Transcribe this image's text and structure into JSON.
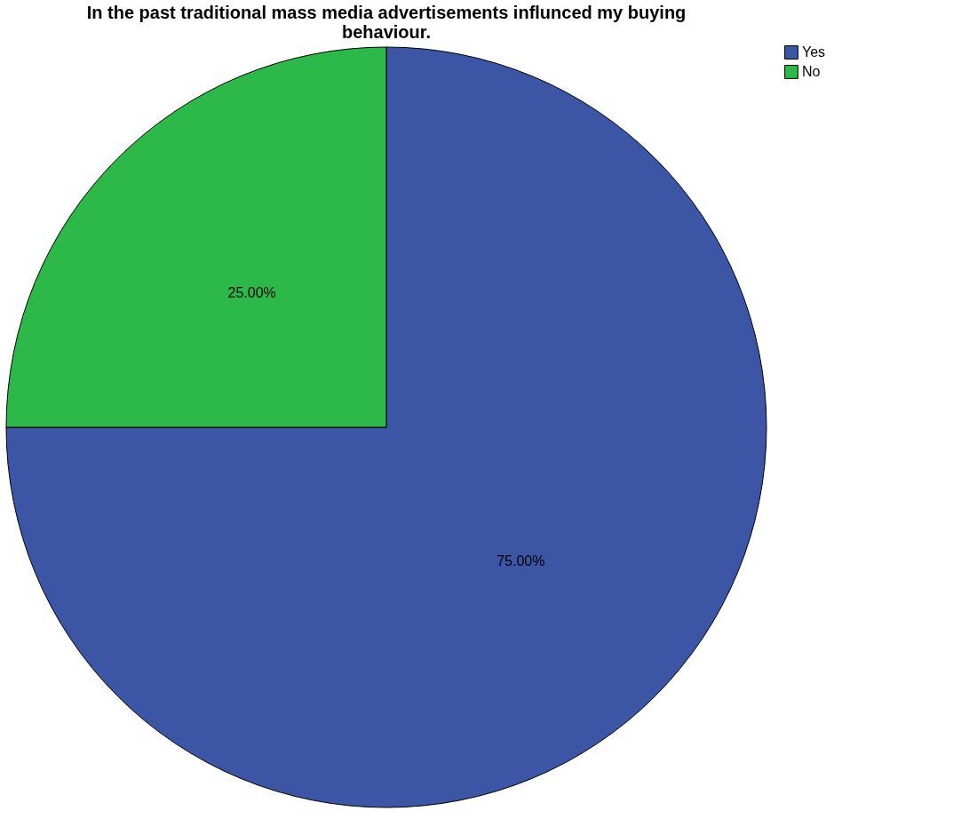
{
  "chart_data": {
    "type": "pie",
    "title": "In the past traditional mass media advertisements influnced my buying behaviour.",
    "categories": [
      "Yes",
      "No"
    ],
    "values": [
      75,
      25
    ],
    "colors": [
      "#3c55a5",
      "#2db84a"
    ],
    "value_labels": [
      "75.00%",
      "25.00%"
    ],
    "legend": "top right"
  }
}
